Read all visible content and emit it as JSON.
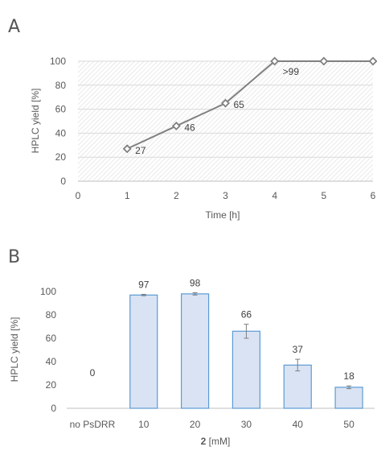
{
  "chart_data": [
    {
      "panel": "A",
      "type": "line",
      "xlabel": "Time [h]",
      "ylabel": "HPLC yield [%]",
      "xlim": [
        0,
        6
      ],
      "ylim": [
        0,
        100
      ],
      "xticks": [
        "0",
        "1",
        "2",
        "3",
        "4",
        "5",
        "6"
      ],
      "yticks": [
        "0",
        "20",
        "40",
        "60",
        "80",
        "100"
      ],
      "grid": "horizontal",
      "background": "diagonal-hatch",
      "series": [
        {
          "x": [
            1,
            2,
            3,
            4,
            5,
            6
          ],
          "y": [
            27,
            46,
            65,
            100,
            100,
            100
          ]
        }
      ],
      "data_labels": [
        {
          "x": 1,
          "y": 27,
          "text": "27"
        },
        {
          "x": 2,
          "y": 46,
          "text": "46"
        },
        {
          "x": 3,
          "y": 65,
          "text": "65"
        },
        {
          "x": 4,
          "y": 100,
          "text": ">99"
        }
      ],
      "line_color": "#808080"
    },
    {
      "panel": "B",
      "type": "bar",
      "xlabel_bold": "2",
      "xlabel_rest": " [mM]",
      "ylabel": "HPLC yield [%]",
      "ylim": [
        0,
        100
      ],
      "yticks": [
        "0",
        "20",
        "40",
        "60",
        "80",
        "100"
      ],
      "categories": [
        "no PsDRR",
        "10",
        "20",
        "30",
        "40",
        "50"
      ],
      "values": [
        0,
        97,
        98,
        66,
        37,
        18
      ],
      "errors": [
        0,
        0.6,
        1,
        6,
        5,
        1.2
      ],
      "labels": [
        "0",
        "97",
        "98",
        "66",
        "37",
        "18"
      ],
      "bar_fill": "#dae3f3",
      "bar_stroke": "#5b9bd5"
    }
  ]
}
